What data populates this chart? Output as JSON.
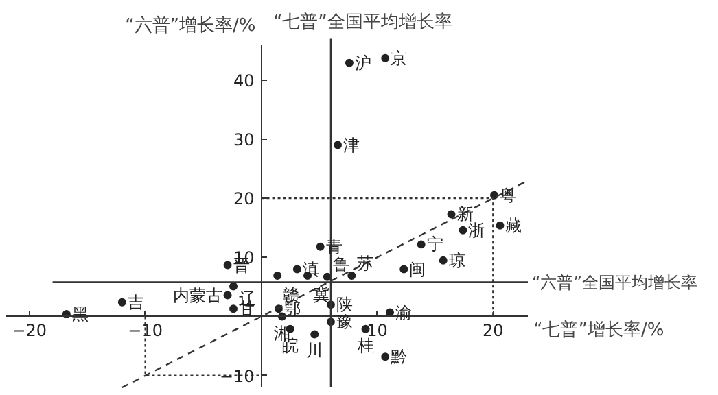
{
  "chart_data": {
    "type": "scatter",
    "xlabel": "“七普”增长率/%",
    "ylabel": "“六普”增长率/%",
    "xlim": [
      -22,
      23
    ],
    "ylim": [
      -12,
      46
    ],
    "xticks": [
      -20,
      -10,
      10,
      20
    ],
    "yticks": [
      -10,
      10,
      20,
      30,
      40
    ],
    "grid": false,
    "marker": "circle",
    "series": [
      {
        "color": "#222222",
        "x": [
          7.6,
          10.7,
          6.6,
          20.1,
          16.4,
          20.6,
          17.4,
          13.8,
          15.7,
          12.3,
          7.8,
          5.7,
          5.1,
          3.1,
          1.4,
          4.0,
          -2.9,
          -2.4,
          -2.9,
          -12.0,
          -2.4,
          -16.8,
          1.5,
          1.8,
          2.5,
          4.6,
          6.0,
          6.0,
          11.1,
          9.0,
          10.7
        ],
        "values": [
          42.9,
          43.7,
          29,
          20.5,
          17.3,
          15.4,
          14.6,
          12.2,
          9.5,
          8.0,
          6.9,
          6.7,
          11.8,
          8.0,
          6.9,
          6.9,
          8.7,
          5.1,
          3.6,
          2.4,
          1.3,
          0.4,
          1.3,
          0.0,
          -2.1,
          -3.0,
          2.0,
          -0.9,
          0.7,
          -2.1,
          -6.8
        ]
      },
      {
        "type": "line",
        "color": "#333333",
        "marker": "none",
        "line_style": "dashed",
        "x": [
          -12,
          23
        ],
        "values": [
          -12,
          23
        ]
      },
      {
        "type": "line",
        "color": "#333333",
        "marker": "none",
        "line_style": "dotted",
        "x": [
          0,
          20,
          20
        ],
        "values": [
          20,
          20,
          0
        ]
      },
      {
        "type": "line",
        "color": "#333333",
        "marker": "none",
        "line_style": "dotted",
        "x": [
          -10,
          -10,
          0
        ],
        "values": [
          0,
          -10,
          -10
        ]
      }
    ],
    "ref_lines": [
      {
        "axis": "x",
        "value": 6,
        "label": "“七普”全国平均增长率",
        "color": "#333333"
      },
      {
        "axis": "y",
        "value": 5.8,
        "label": "“六普”全国平均增长率",
        "color": "#333333"
      }
    ],
    "annotations": [
      {
        "text": "沪",
        "x": 7.6,
        "y": 42.9
      },
      {
        "text": "京",
        "x": 10.7,
        "y": 43.7
      },
      {
        "text": "津",
        "x": 6.6,
        "y": 29
      },
      {
        "text": "粤",
        "x": 20.1,
        "y": 20.5
      },
      {
        "text": "新",
        "x": 16.4,
        "y": 17.3
      },
      {
        "text": "藏",
        "x": 20.6,
        "y": 15.4
      },
      {
        "text": "浙",
        "x": 17.4,
        "y": 14.6
      },
      {
        "text": "宁",
        "x": 13.8,
        "y": 12.2
      },
      {
        "text": "琼",
        "x": 15.7,
        "y": 9.5
      },
      {
        "text": "闽",
        "x": 12.3,
        "y": 8.0
      },
      {
        "text": "苏",
        "x": 7.8,
        "y": 6.9
      },
      {
        "text": "鲁",
        "x": 5.7,
        "y": 6.7
      },
      {
        "text": "青",
        "x": 5.1,
        "y": 11.8
      },
      {
        "text": "滇",
        "x": 3.1,
        "y": 8.0
      },
      {
        "text": "赣",
        "x": 1.4,
        "y": 6.9
      },
      {
        "text": "冀",
        "x": 4.0,
        "y": 6.9
      },
      {
        "text": "晋",
        "x": -2.9,
        "y": 8.7
      },
      {
        "text": "辽",
        "x": -2.4,
        "y": 5.1
      },
      {
        "text": "内蒙古",
        "x": -2.9,
        "y": 3.6
      },
      {
        "text": "吉",
        "x": -12.0,
        "y": 2.4
      },
      {
        "text": "甘",
        "x": -2.4,
        "y": 1.3
      },
      {
        "text": "黑",
        "x": -16.8,
        "y": 0.4
      },
      {
        "text": "鄂",
        "x": 1.5,
        "y": 1.3
      },
      {
        "text": "湘",
        "x": 1.8,
        "y": 0.0
      },
      {
        "text": "皖",
        "x": 2.5,
        "y": -2.1
      },
      {
        "text": "川",
        "x": 4.6,
        "y": -3.0
      },
      {
        "text": "陕",
        "x": 6.0,
        "y": 2.0
      },
      {
        "text": "豫",
        "x": 6.0,
        "y": -0.9
      },
      {
        "text": "渝",
        "x": 11.1,
        "y": 0.7
      },
      {
        "text": "桂",
        "x": 9.0,
        "y": -2.1
      },
      {
        "text": "黔",
        "x": 10.7,
        "y": -6.8
      }
    ]
  }
}
